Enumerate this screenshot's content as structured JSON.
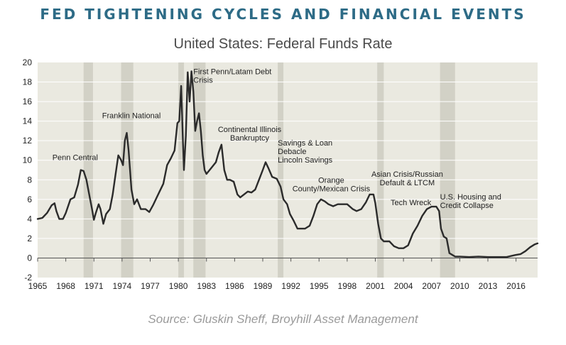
{
  "page": {
    "title": "FED TIGHTENING CYCLES AND FINANCIAL EVENTS",
    "subtitle": "United States: Federal Funds Rate",
    "source": "Source: Gluskin Sheff, Broyhill Asset Management"
  },
  "colors": {
    "title": "#2d6b86",
    "plot_bg": "#eae9e0",
    "band": "#d2d1c6",
    "line": "#2b2b2b",
    "grid": "#ffffff"
  },
  "chart_data": {
    "type": "line",
    "title": "United States: Federal Funds Rate",
    "xlabel": "",
    "ylabel": "",
    "xlim": [
      1965,
      2018.3
    ],
    "ylim": [
      -2,
      20
    ],
    "xticks": [
      1965,
      1968,
      1971,
      1974,
      1977,
      1980,
      1983,
      1986,
      1989,
      1992,
      1995,
      1998,
      2001,
      2004,
      2007,
      2010,
      2013,
      2016
    ],
    "yticks": [
      -2,
      0,
      2,
      4,
      6,
      8,
      10,
      12,
      14,
      16,
      18,
      20
    ],
    "grid": true,
    "legend": "none",
    "recessions": [
      [
        1969.9,
        1970.9
      ],
      [
        1973.9,
        1975.2
      ],
      [
        1980.0,
        1980.6
      ],
      [
        1981.6,
        1982.9
      ],
      [
        1990.6,
        1991.2
      ],
      [
        2001.2,
        2001.9
      ],
      [
        2007.9,
        2009.5
      ]
    ],
    "series": [
      {
        "name": "",
        "x": [
          1965.0,
          1965.5,
          1966.0,
          1966.5,
          1966.8,
          1967.0,
          1967.3,
          1967.7,
          1968.0,
          1968.5,
          1968.9,
          1969.3,
          1969.6,
          1969.9,
          1970.2,
          1970.5,
          1970.8,
          1971.0,
          1971.2,
          1971.5,
          1971.7,
          1972.0,
          1972.3,
          1972.7,
          1973.0,
          1973.3,
          1973.6,
          1973.9,
          1974.1,
          1974.3,
          1974.5,
          1974.7,
          1975.0,
          1975.3,
          1975.6,
          1976.0,
          1976.5,
          1976.9,
          1977.3,
          1977.7,
          1978.0,
          1978.4,
          1978.8,
          1979.2,
          1979.6,
          1979.9,
          1980.1,
          1980.3,
          1980.45,
          1980.6,
          1980.8,
          1981.0,
          1981.2,
          1981.4,
          1981.6,
          1981.8,
          1982.0,
          1982.2,
          1982.4,
          1982.6,
          1982.8,
          1983.0,
          1983.5,
          1984.0,
          1984.3,
          1984.6,
          1984.9,
          1985.2,
          1985.5,
          1985.9,
          1986.3,
          1986.6,
          1987.0,
          1987.4,
          1987.8,
          1988.2,
          1988.6,
          1989.0,
          1989.3,
          1989.6,
          1990.0,
          1990.5,
          1990.9,
          1991.2,
          1991.6,
          1991.9,
          1992.3,
          1992.7,
          1993.0,
          1993.5,
          1994.0,
          1994.4,
          1994.8,
          1995.2,
          1995.6,
          1996.0,
          1996.5,
          1997.0,
          1997.5,
          1998.0,
          1998.6,
          1999.0,
          1999.5,
          2000.0,
          2000.4,
          2000.8,
          2001.0,
          2001.3,
          2001.6,
          2001.9,
          2002.5,
          2003.0,
          2003.5,
          2004.0,
          2004.5,
          2005.0,
          2005.5,
          2006.0,
          2006.5,
          2007.0,
          2007.5,
          2007.8,
          2008.0,
          2008.3,
          2008.6,
          2008.9,
          2009.5,
          2010.0,
          2011.0,
          2012.0,
          2013.0,
          2014.0,
          2015.0,
          2015.9,
          2016.5,
          2017.0,
          2017.5,
          2018.0,
          2018.3
        ],
        "values": [
          4.0,
          4.1,
          4.6,
          5.4,
          5.6,
          4.8,
          4.0,
          4.0,
          4.6,
          6.0,
          6.2,
          7.5,
          9.0,
          8.9,
          8.0,
          6.5,
          5.0,
          3.9,
          4.6,
          5.5,
          5.0,
          3.5,
          4.5,
          5.0,
          6.5,
          8.5,
          10.5,
          10.0,
          9.5,
          12.0,
          12.8,
          11.0,
          7.0,
          5.5,
          6.0,
          5.0,
          5.0,
          4.7,
          5.4,
          6.2,
          6.8,
          7.6,
          9.5,
          10.2,
          11.0,
          13.8,
          14.0,
          17.6,
          13.0,
          9.0,
          12.5,
          19.0,
          16.0,
          19.1,
          17.0,
          13.0,
          14.0,
          14.8,
          13.0,
          10.5,
          9.0,
          8.6,
          9.2,
          9.8,
          10.8,
          11.6,
          9.0,
          8.0,
          8.0,
          7.8,
          6.5,
          6.2,
          6.5,
          6.8,
          6.7,
          7.0,
          8.0,
          9.0,
          9.8,
          9.2,
          8.3,
          8.1,
          7.3,
          6.0,
          5.5,
          4.5,
          3.8,
          3.0,
          3.0,
          3.0,
          3.3,
          4.3,
          5.5,
          6.0,
          5.8,
          5.5,
          5.3,
          5.5,
          5.5,
          5.5,
          5.0,
          4.8,
          5.0,
          5.7,
          6.5,
          6.5,
          5.6,
          3.5,
          2.0,
          1.7,
          1.7,
          1.2,
          1.0,
          1.0,
          1.3,
          2.5,
          3.3,
          4.3,
          5.0,
          5.25,
          5.25,
          4.8,
          3.0,
          2.2,
          2.0,
          0.5,
          0.15,
          0.15,
          0.1,
          0.15,
          0.1,
          0.1,
          0.1,
          0.3,
          0.4,
          0.7,
          1.1,
          1.4,
          1.5
        ]
      }
    ],
    "annotations": [
      {
        "lines": [
          "Penn Central"
        ],
        "x": 1969.0,
        "y": 10.0,
        "align": "middle"
      },
      {
        "lines": [
          "Franklin National"
        ],
        "x": 1975.0,
        "y": 14.3,
        "align": "middle"
      },
      {
        "lines": [
          "First Penn/Latam Debt",
          "Crisis"
        ],
        "x": 1981.6,
        "y": 18.8,
        "align": "start"
      },
      {
        "lines": [
          "Continental Illinois",
          "Bankruptcy"
        ],
        "x": 1987.6,
        "y": 12.9,
        "align": "middle"
      },
      {
        "lines": [
          "Savings & Loan",
          "Debacle",
          "Lincoln Savings"
        ],
        "x": 1990.6,
        "y": 11.5,
        "align": "start"
      },
      {
        "lines": [
          "Orange",
          "County/Mexican Crisis"
        ],
        "x": 1996.3,
        "y": 7.7,
        "align": "middle"
      },
      {
        "lines": [
          "Asian Crisis/Russian",
          "Default & LTCM"
        ],
        "x": 2004.4,
        "y": 8.3,
        "align": "middle"
      },
      {
        "lines": [
          "Tech Wreck"
        ],
        "x": 2004.8,
        "y": 5.4,
        "align": "middle"
      },
      {
        "lines": [
          "U.S. Housing and",
          "Credit Collapse"
        ],
        "x": 2007.9,
        "y": 6.0,
        "align": "start"
      }
    ]
  }
}
